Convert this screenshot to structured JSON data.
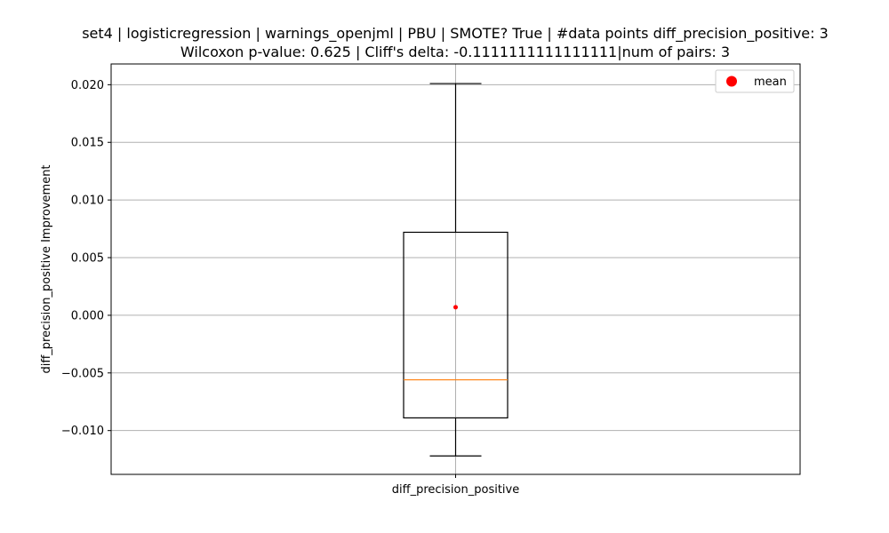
{
  "chart_data": {
    "type": "box",
    "title_line1": "set4 | logisticregression | warnings_openjml | PBU | SMOTE? True | #data points diff_precision_positive: 3",
    "title_line2": "Wilcoxon p-value: 0.625 | Cliff's delta: -0.1111111111111111|num of pairs: 3",
    "ylabel": "diff_precision_positive Improvement",
    "categories": [
      "diff_precision_positive"
    ],
    "ylim": [
      -0.0138,
      0.0218
    ],
    "yticks": [
      -0.01,
      -0.005,
      0.0,
      0.005,
      0.01,
      0.015,
      0.02
    ],
    "ytick_labels": [
      "−0.010",
      "−0.005",
      "0.000",
      "0.005",
      "0.010",
      "0.015",
      "0.020"
    ],
    "box": {
      "whisker_low": -0.0122,
      "q1": -0.0089,
      "median": -0.0056,
      "q3": 0.0072,
      "whisker_high": 0.0201,
      "mean": 0.0007
    },
    "grid": true,
    "legend": {
      "position": "top-right",
      "entries": [
        {
          "label": "mean",
          "color": "#ff0000"
        }
      ]
    },
    "colors": {
      "box": "#000000",
      "median": "#ff7f0e",
      "mean": "#ff0000",
      "grid": "#b0b0b0"
    }
  }
}
